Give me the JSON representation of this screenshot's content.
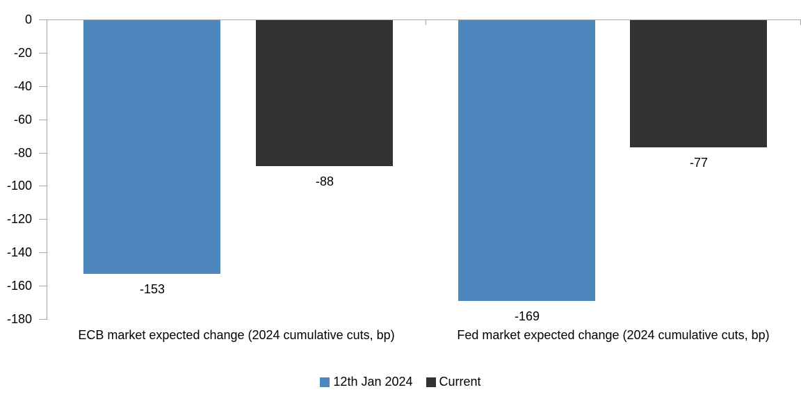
{
  "chart_data": {
    "type": "bar",
    "title": "",
    "xlabel": "",
    "ylabel": "",
    "categories": [
      "ECB market expected change (2024 cumulative cuts, bp)",
      "Fed market expected change (2024 cumulative cuts, bp)"
    ],
    "series": [
      {
        "name": "12th Jan 2024",
        "color": "#4E87BE",
        "values": [
          -153,
          -169
        ]
      },
      {
        "name": "Current",
        "color": "#333233",
        "values": [
          -88,
          -77
        ]
      }
    ],
    "y_ticks": [
      0,
      -20,
      -40,
      -60,
      -80,
      -100,
      -120,
      -140,
      -160,
      -180
    ],
    "ylim": [
      -180,
      0
    ],
    "grid": false,
    "data_labels": true,
    "legend_position": "bottom",
    "axis_color": "#A6A6A6",
    "text_color": "#000000",
    "background_color": "#FFFFFF"
  }
}
